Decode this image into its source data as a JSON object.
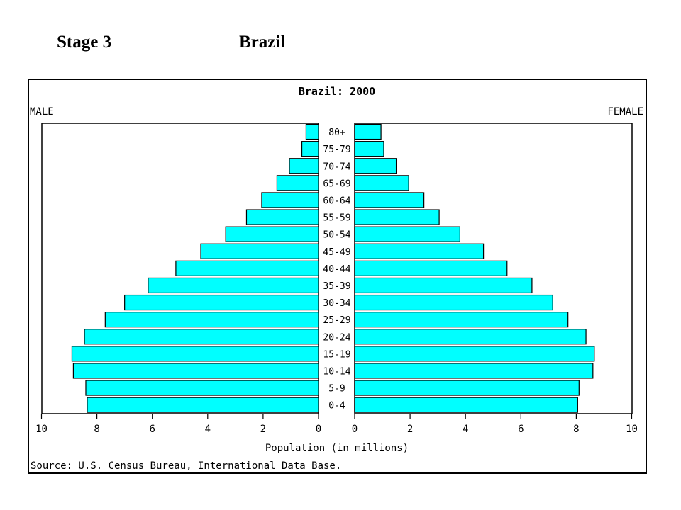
{
  "slide": {
    "stage_label": "Stage 3",
    "country_label": "Brazil"
  },
  "chart_data": {
    "type": "bar",
    "title": "Brazil: 2000",
    "left_label": "MALE",
    "right_label": "FEMALE",
    "xlabel": "Population (in millions)",
    "source": "Source: U.S. Census Bureau, International Data Base.",
    "xlim": [
      0,
      10
    ],
    "ticks": [
      "10",
      "8",
      "6",
      "4",
      "2",
      "0",
      "0",
      "2",
      "4",
      "6",
      "8",
      "10"
    ],
    "categories": [
      "80+",
      "75-79",
      "70-74",
      "65-69",
      "60-64",
      "55-59",
      "50-54",
      "45-49",
      "40-44",
      "35-39",
      "30-34",
      "25-29",
      "20-24",
      "15-19",
      "10-14",
      "5-9",
      "0-4"
    ],
    "series": [
      {
        "name": "MALE",
        "values": [
          0.45,
          0.6,
          1.05,
          1.5,
          2.05,
          2.6,
          3.35,
          4.25,
          5.15,
          6.15,
          7.0,
          7.7,
          8.45,
          8.9,
          8.85,
          8.4,
          8.35
        ]
      },
      {
        "name": "FEMALE",
        "values": [
          0.95,
          1.05,
          1.5,
          1.95,
          2.5,
          3.05,
          3.8,
          4.65,
          5.5,
          6.4,
          7.15,
          7.7,
          8.35,
          8.65,
          8.6,
          8.1,
          8.05
        ]
      }
    ],
    "bar_color": "#00ffff",
    "grid": false
  }
}
